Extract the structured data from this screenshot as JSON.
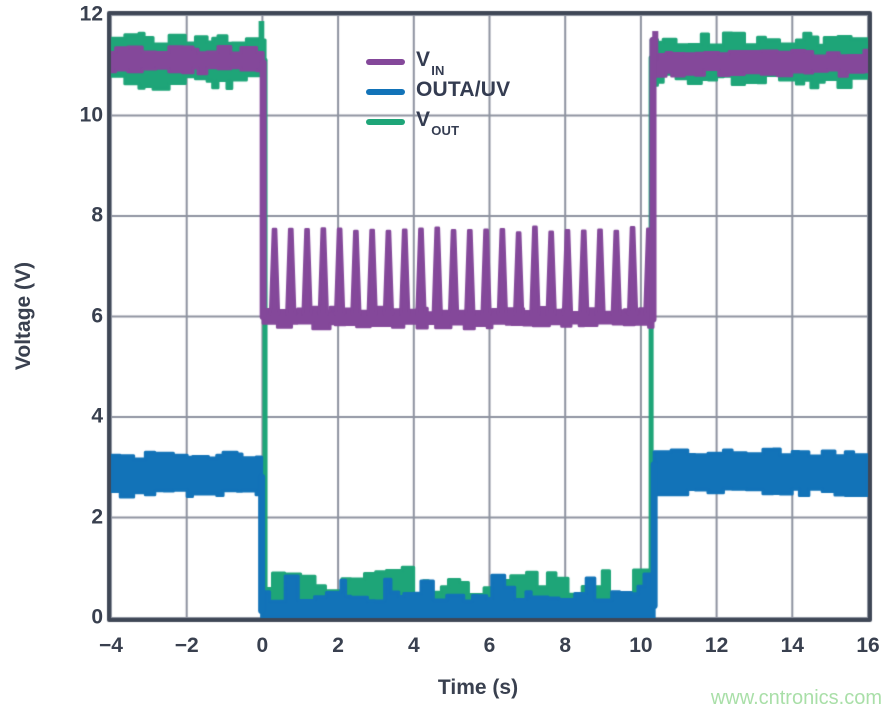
{
  "page": {
    "watermark": "www.cntronics.com"
  },
  "colors": {
    "background": "#ffffff",
    "grid": "#8e93a0",
    "frame": "#3f4756",
    "text": "#39404f",
    "legend_text": "#343c51",
    "watermark": "#a9dfa8",
    "vin": "#84489a",
    "outa_uv": "#1273b8",
    "vout": "#1ea578"
  },
  "chart_data": {
    "type": "line",
    "title": "",
    "xlabel": "Time (s)",
    "ylabel": "Voltage (V)",
    "xlim": [
      -4,
      16
    ],
    "ylim": [
      0,
      12
    ],
    "xticks": [
      -4,
      -2,
      0,
      2,
      4,
      6,
      8,
      10,
      12,
      14,
      16
    ],
    "yticks": [
      0,
      2,
      4,
      6,
      8,
      10,
      12
    ],
    "grid": true,
    "legend_position": "top-center",
    "legend": [
      {
        "key": "vin",
        "main": "V",
        "sub": "IN",
        "color": "#84489a"
      },
      {
        "key": "outa-uv",
        "main": "OUTA/UV",
        "sub": "",
        "color": "#1273b8"
      },
      {
        "key": "vout",
        "main": "V",
        "sub": "OUT",
        "color": "#1ea578"
      }
    ],
    "series": [
      {
        "name": "V_OUT",
        "color": "#1ea578",
        "draw_order": 1,
        "description": "Regulator output: ~11.1 V noisy band before t=0 and after t=10.3 s; drops to ~0.55 V (intermittent 0.6-0.9 V patches) while input is in UV fault window 0 < t < 10.3 s.",
        "segments": [
          {
            "kind": "band",
            "t0": -4,
            "t1": 0.07,
            "level": 11.1,
            "hw_min": 0.28,
            "hw_max": 0.62
          },
          {
            "kind": "fill",
            "t0": 0.07,
            "t1": 10.27,
            "fill_to": 0.18,
            "top_min": 0.45,
            "top_max": 0.65,
            "bump_chance": 0.5,
            "bump": 0.28
          },
          {
            "kind": "band",
            "t0": 10.27,
            "t1": 16,
            "level": 11.1,
            "hw_min": 0.26,
            "hw_max": 0.55
          }
        ],
        "edges": [
          {
            "t": 0.07,
            "v0": 11.1,
            "v1": 0.5,
            "w": 5
          },
          {
            "t": 10.27,
            "v0": 0.5,
            "v1": 11.15,
            "w": 5
          }
        ],
        "blobs": [
          {
            "t0": -0.1,
            "t1": 0.05,
            "v0": 11.3,
            "v1": 11.88
          }
        ]
      },
      {
        "name": "V_IN",
        "color": "#84489a",
        "draw_order": 2,
        "description": "Input supply: ~11.1 V before t=0 and after t=10.3 s; steps down to ~6 V with ~23 periodic retry spikes to ~7.8 V (period ~0.43 s) between t=0 and t=10.3 s.",
        "segments": [
          {
            "kind": "band",
            "t0": -4,
            "t1": 0.02,
            "level": 11.1,
            "hw_min": 0.13,
            "hw_max": 0.28
          },
          {
            "kind": "band",
            "t0": 0.02,
            "t1": 10.32,
            "level": 5.97,
            "hw_min": 0.1,
            "hw_max": 0.22,
            "pulses": {
              "t_start": 0.32,
              "t_end": 10.22,
              "period": 0.43,
              "peak": 7.78,
              "peak_jitter": 0.12,
              "top_halfwidth": 0.035,
              "base_halfwidth": 0.11
            }
          },
          {
            "kind": "band",
            "t0": 10.32,
            "t1": 16,
            "level": 11.05,
            "hw_min": 0.13,
            "hw_max": 0.28
          }
        ],
        "edges": [
          {
            "t": 0.02,
            "v0": 11.05,
            "v1": 6.0,
            "w": 7
          },
          {
            "t": 10.32,
            "v0": 5.95,
            "v1": 11.5,
            "w": 7
          }
        ],
        "blobs": [
          {
            "t0": 10.3,
            "t1": 10.46,
            "v0": 11.1,
            "v1": 11.68
          }
        ]
      },
      {
        "name": "OUTA/UV",
        "color": "#1273b8",
        "draw_order": 3,
        "description": "UV comparator output: ~2.85 V band before t=0; pulled low (0 to ~0.6 V, filled to 0) during fault 0 < t < 10.35 s; returns to ~2.9-3.3 V band after.",
        "segments": [
          {
            "kind": "band",
            "t0": -4,
            "t1": -0.02,
            "level": 2.85,
            "hw_min": 0.3,
            "hw_max": 0.46
          },
          {
            "kind": "fill",
            "t0": -0.02,
            "t1": 10.35,
            "fill_to": 0,
            "top_min": 0.32,
            "top_max": 0.55,
            "bump_chance": 0.18,
            "bump": 0.28
          },
          {
            "kind": "band",
            "t0": 10.35,
            "t1": 16,
            "level": 2.9,
            "hw_min": 0.32,
            "hw_max": 0.48
          }
        ],
        "edges": [
          {
            "t": -0.02,
            "v0": 2.8,
            "v1": 0.15,
            "w": 7
          },
          {
            "t": 10.35,
            "v0": 0.25,
            "v1": 3.05,
            "w": 7
          }
        ],
        "blobs": []
      }
    ]
  }
}
